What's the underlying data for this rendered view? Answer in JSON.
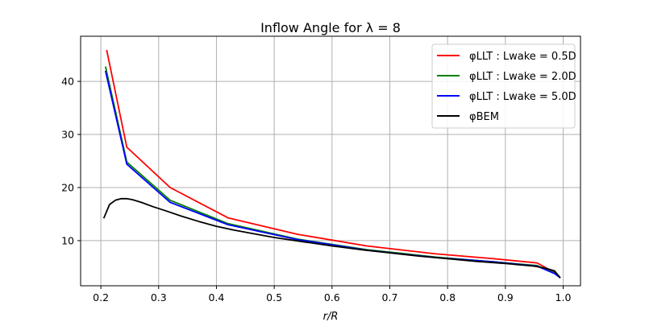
{
  "chart_data": {
    "type": "line",
    "title": "Inflow Angle for λ = 8",
    "xlabel": "r/R",
    "ylabel": "",
    "xlim": [
      0.165,
      1.03
    ],
    "ylim": [
      1.5,
      48.5
    ],
    "xticks": [
      0.2,
      0.3,
      0.4,
      0.5,
      0.6,
      0.7,
      0.8,
      0.9,
      1.0
    ],
    "xtick_labels": [
      "0.2",
      "0.3",
      "0.4",
      "0.5",
      "0.6",
      "0.7",
      "0.8",
      "0.9",
      "1.0"
    ],
    "yticks": [
      10,
      20,
      30,
      40
    ],
    "ytick_labels": [
      "10",
      "20",
      "30",
      "40"
    ],
    "grid": true,
    "legend_position": "top-right",
    "series": [
      {
        "name": "φLLT : Lwake = 0.5D",
        "color": "#ff0000",
        "x": [
          0.21,
          0.245,
          0.32,
          0.42,
          0.54,
          0.66,
          0.78,
          0.88,
          0.955,
          0.985,
          0.995
        ],
        "y": [
          45.9,
          27.6,
          20.0,
          14.3,
          11.2,
          9.0,
          7.5,
          6.6,
          5.8,
          4.0,
          3.0
        ]
      },
      {
        "name": "φLLT : Lwake = 2.0D",
        "color": "#008000",
        "x": [
          0.208,
          0.245,
          0.32,
          0.42,
          0.54,
          0.66,
          0.78,
          0.88,
          0.955,
          0.985,
          0.995
        ],
        "y": [
          42.8,
          24.8,
          17.6,
          13.2,
          10.3,
          8.3,
          6.9,
          6.0,
          5.3,
          3.9,
          3.0
        ]
      },
      {
        "name": "φLLT : Lwake = 5.0D",
        "color": "#0000ff",
        "x": [
          0.208,
          0.245,
          0.32,
          0.42,
          0.54,
          0.66,
          0.78,
          0.88,
          0.955,
          0.985,
          0.995
        ],
        "y": [
          42.0,
          24.4,
          17.2,
          13.0,
          10.2,
          8.2,
          6.8,
          6.0,
          5.2,
          3.8,
          3.0
        ]
      },
      {
        "name": "φBEM",
        "color": "#000000",
        "x": [
          0.205,
          0.215,
          0.225,
          0.235,
          0.245,
          0.255,
          0.27,
          0.29,
          0.31,
          0.34,
          0.37,
          0.4,
          0.43,
          0.46,
          0.5,
          0.55,
          0.6,
          0.65,
          0.7,
          0.75,
          0.8,
          0.85,
          0.9,
          0.95,
          0.97,
          0.985,
          0.995
        ],
        "y": [
          14.2,
          16.8,
          17.6,
          17.9,
          17.9,
          17.7,
          17.2,
          16.4,
          15.7,
          14.6,
          13.6,
          12.7,
          12.0,
          11.4,
          10.6,
          9.8,
          9.0,
          8.3,
          7.7,
          7.1,
          6.6,
          6.1,
          5.7,
          5.2,
          4.8,
          4.3,
          3.0
        ]
      }
    ]
  }
}
